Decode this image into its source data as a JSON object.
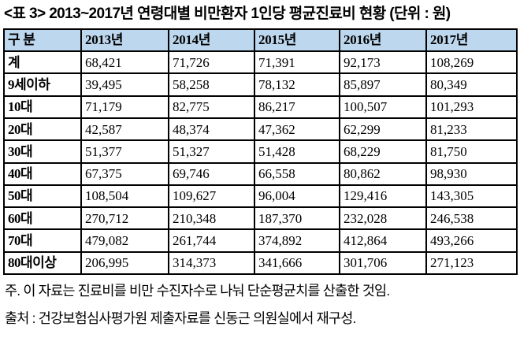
{
  "title": "<표 3> 2013~2017년 연령대별 비만환자 1인당 평균진료비 현황 (단위 : 원)",
  "table": {
    "header": [
      "구 분",
      "2013년",
      "2014년",
      "2015년",
      "2016년",
      "2017년"
    ],
    "rows": [
      {
        "label": "계",
        "values": [
          "68,421",
          "71,726",
          "71,391",
          "92,173",
          "108,269"
        ]
      },
      {
        "label": "9세이하",
        "values": [
          "39,495",
          "58,258",
          "78,132",
          "85,897",
          "80,349"
        ]
      },
      {
        "label": "10대",
        "values": [
          "71,179",
          "82,775",
          "86,217",
          "100,507",
          "101,293"
        ]
      },
      {
        "label": "20대",
        "values": [
          "42,587",
          "48,374",
          "47,362",
          "62,299",
          "81,233"
        ]
      },
      {
        "label": "30대",
        "values": [
          "51,377",
          "51,327",
          "51,428",
          "68,229",
          "81,750"
        ]
      },
      {
        "label": "40대",
        "values": [
          "67,375",
          "69,746",
          "66,558",
          "80,862",
          "98,930"
        ]
      },
      {
        "label": "50대",
        "values": [
          "108,504",
          "109,627",
          "96,004",
          "129,416",
          "143,305"
        ]
      },
      {
        "label": "60대",
        "values": [
          "270,712",
          "210,348",
          "187,370",
          "232,028",
          "246,538"
        ]
      },
      {
        "label": "70대",
        "values": [
          "479,082",
          "261,744",
          "374,892",
          "412,864",
          "493,266"
        ]
      },
      {
        "label": "80대이상",
        "values": [
          "206,995",
          "314,373",
          "341,666",
          "301,706",
          "271,123"
        ]
      }
    ]
  },
  "notes": {
    "note": "주. 이 자료는 진료비를 비만 수진자수로 나눠 단순평균치를 산출한 것임.",
    "source": "출처 : 건강보험심사평가원 제출자료를 신동근 의원실에서 재구성."
  },
  "colors": {
    "header_bg": "#bdd7ee",
    "border": "#000000",
    "text": "#000000"
  }
}
